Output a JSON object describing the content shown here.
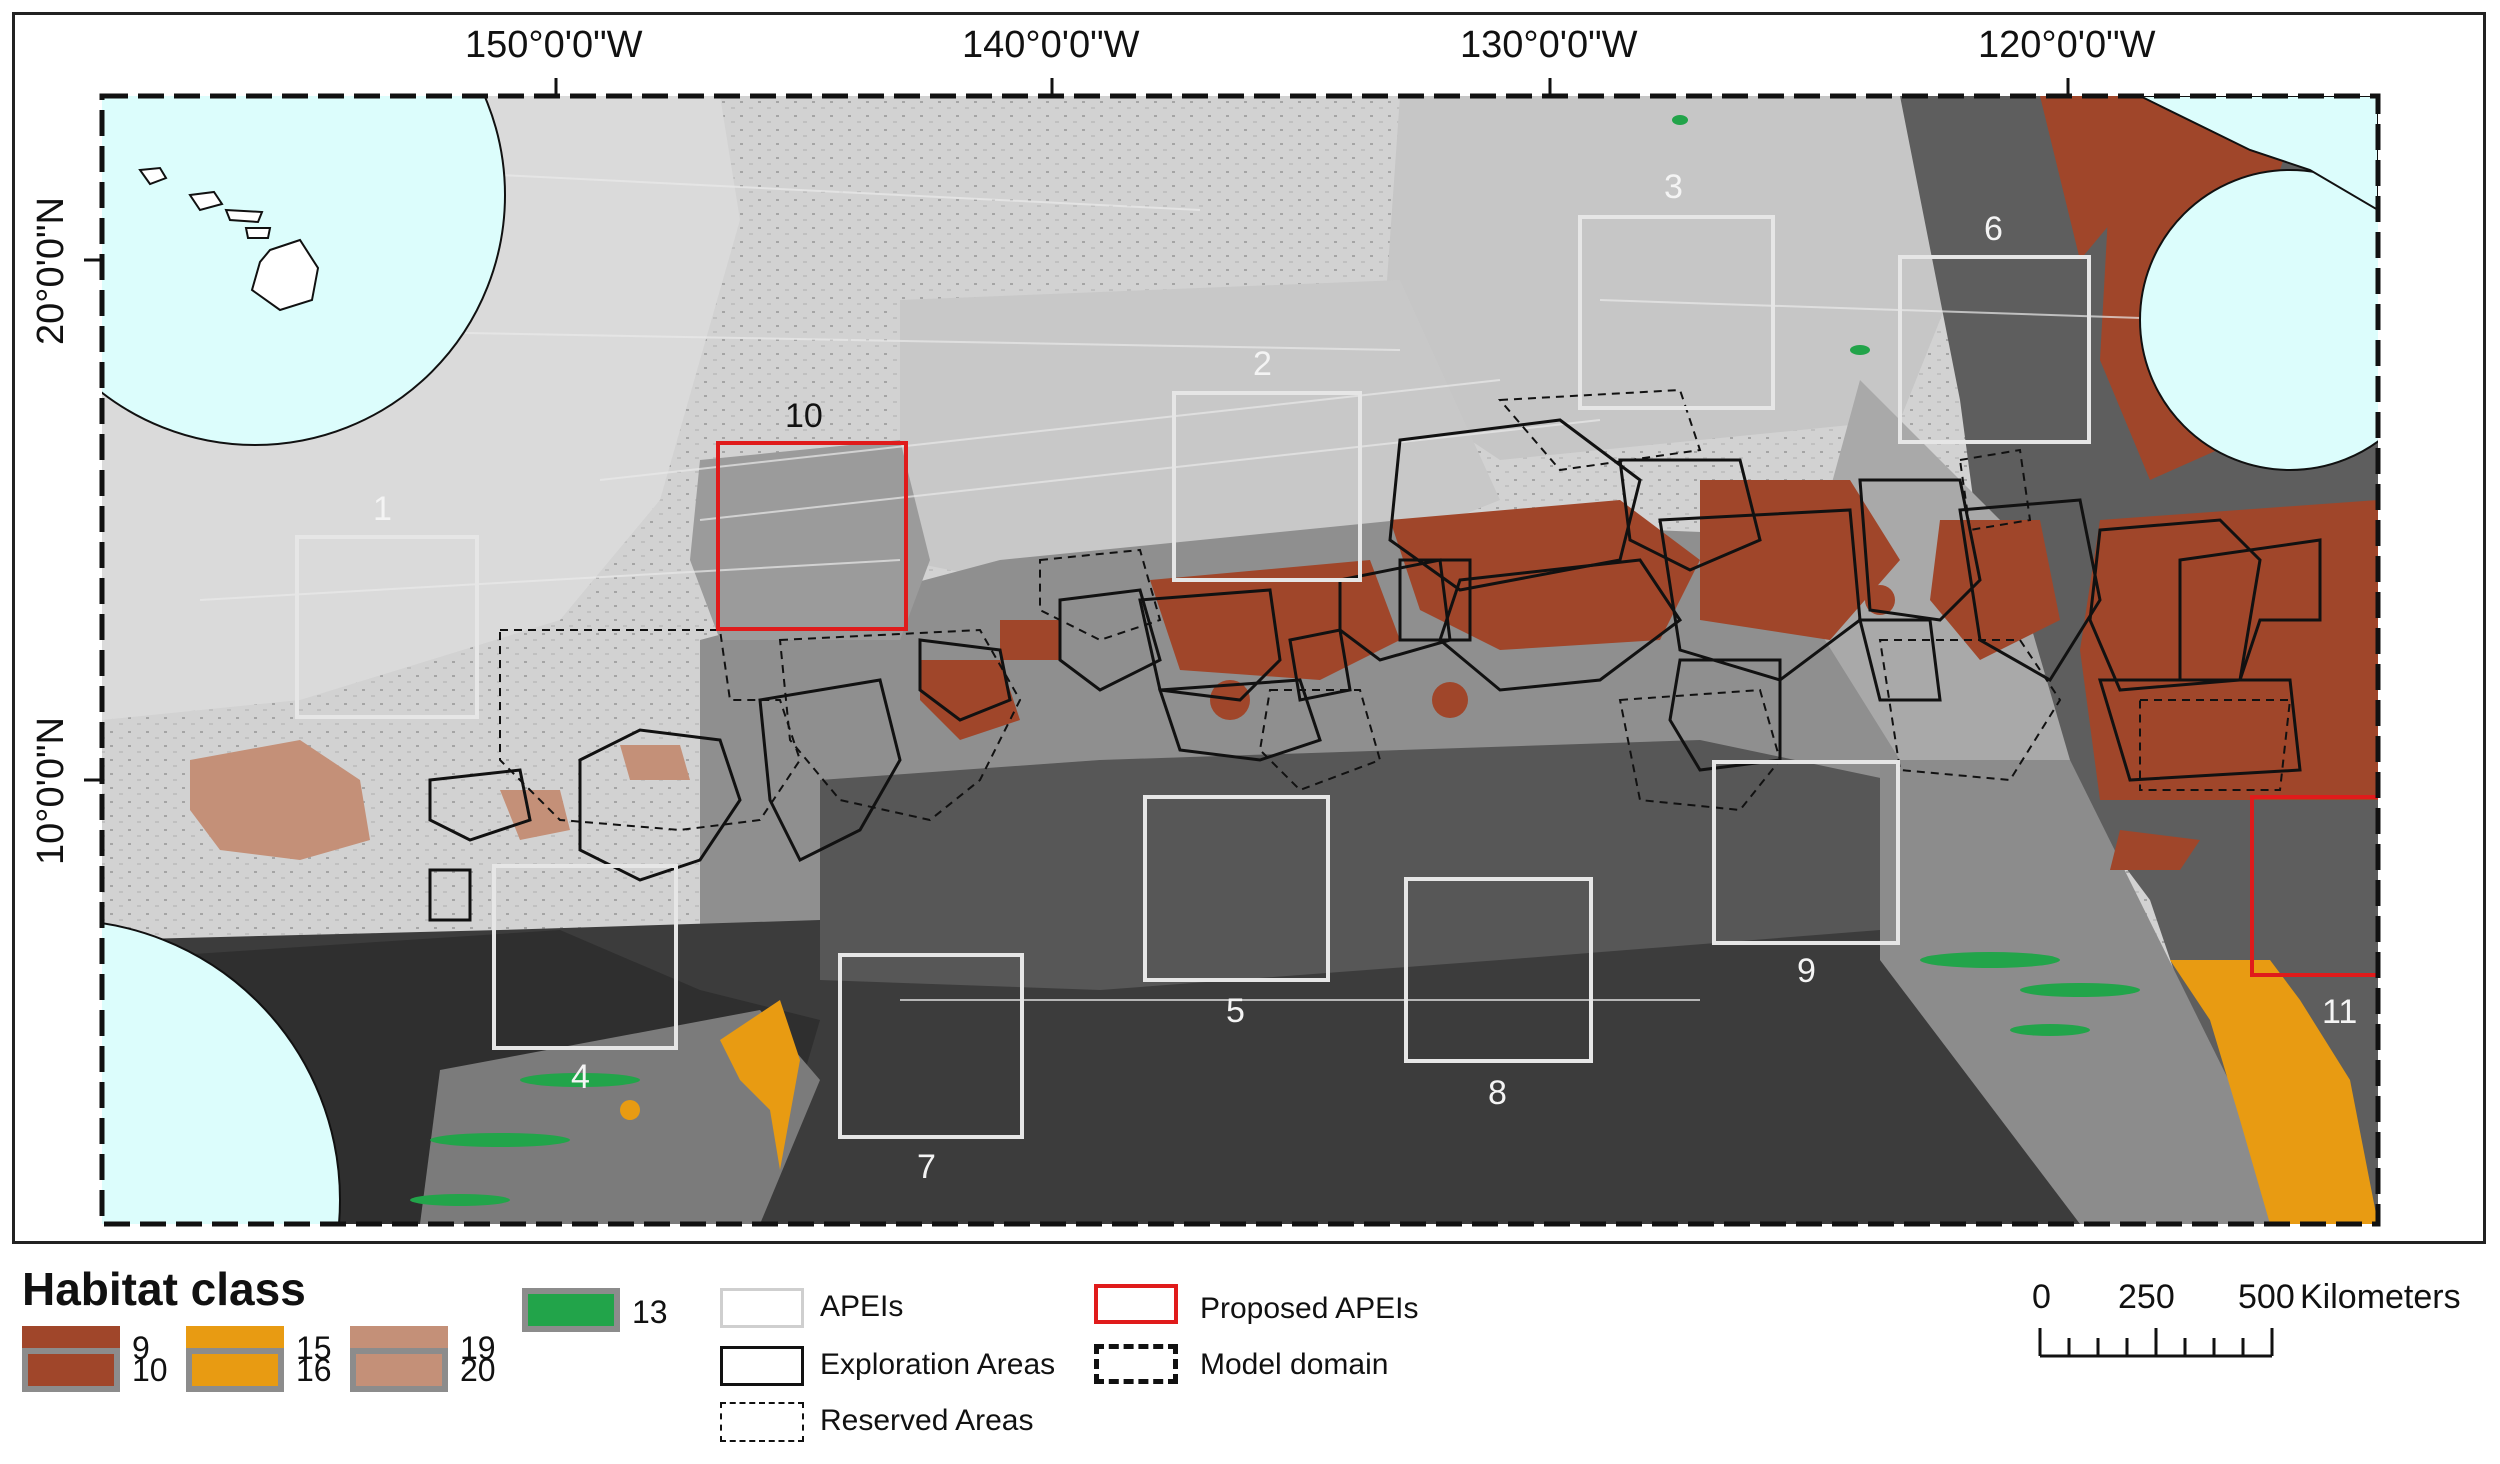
{
  "map": {
    "longitude_labels": [
      "150°0'0\"W",
      "140°0'0\"W",
      "130°0'0\"W",
      "120°0'0\"W"
    ],
    "latitude_labels": [
      "20°0'0\"N",
      "10°0'0\"N"
    ],
    "apei_numbers": [
      "1",
      "2",
      "3",
      "4",
      "5",
      "6",
      "7",
      "8",
      "9",
      "10",
      "11"
    ],
    "colors": {
      "light_ocean": "#dcfdfc",
      "habitat_light": "#d2d2d2",
      "habitat_mid": "#a8a8a8",
      "habitat_dark": "#5a5a5a",
      "habitat_darkest": "#333333",
      "class_9": "#a0462a",
      "class_15": "#e89b12",
      "class_19": "#c49078",
      "class_13": "#22a44a",
      "apei_outline": "#e6e6e6",
      "proposed_apei_outline": "#e01b1b"
    }
  },
  "legend": {
    "title": "Habitat class",
    "classes": [
      {
        "label": "9",
        "color": "#a0462a"
      },
      {
        "label": "15",
        "color": "#e89b12"
      },
      {
        "label": "19",
        "color": "#c49078"
      },
      {
        "label": "13",
        "color": "#22a44a"
      },
      {
        "label": "10",
        "color": "#a0462a"
      },
      {
        "label": "16",
        "color": "#e89b12"
      },
      {
        "label": "20",
        "color": "#c49078"
      }
    ],
    "lines": {
      "apeis": "APEIs",
      "exploration_areas": "Exploration Areas",
      "reserved_areas": "Reserved Areas",
      "proposed_apeis": "Proposed APEIs",
      "model_domain": "Model domain"
    }
  },
  "scale_bar": {
    "ticks": [
      "0",
      "250",
      "500"
    ],
    "unit": "Kilometers"
  }
}
